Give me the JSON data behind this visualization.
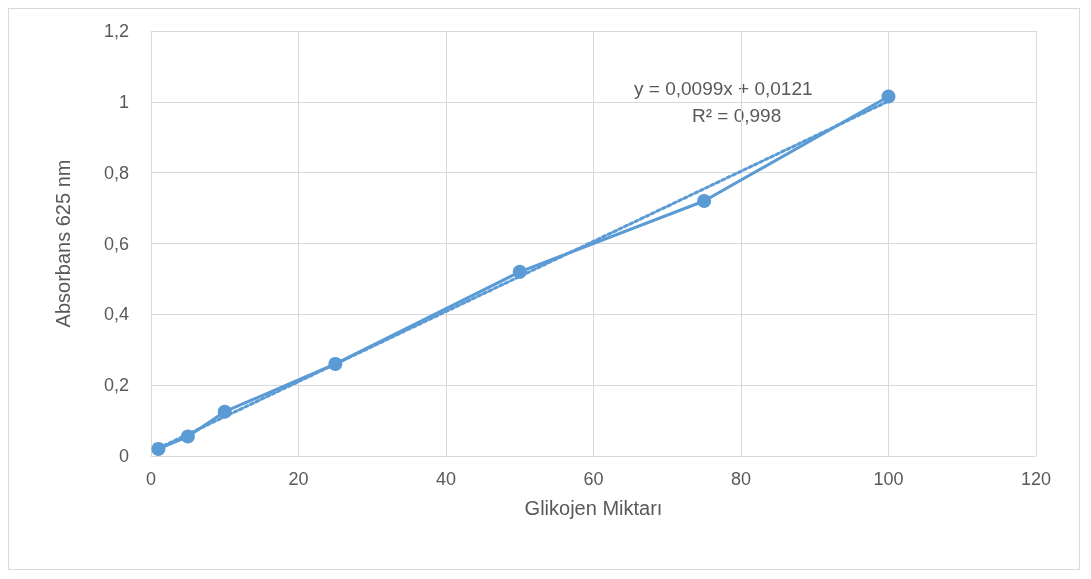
{
  "chart_data": {
    "type": "line",
    "xlabel": "Glikojen Miktarı",
    "ylabel": "Absorbans 625 nm",
    "series": [
      {
        "color": "#5b9bd5",
        "marker": "circle",
        "line_style": "solid",
        "x": [
          1,
          5,
          10,
          25,
          50,
          75,
          100
        ],
        "values": [
          0.02,
          0.055,
          0.125,
          0.26,
          0.52,
          0.72,
          1.015
        ]
      },
      {
        "color": "#5b9bd5",
        "marker": "none",
        "line_style": "dotted",
        "x": [
          1,
          100
        ],
        "values": [
          0.022,
          1.002
        ]
      }
    ],
    "xlim": [
      0,
      120
    ],
    "xticks": [
      0,
      20,
      40,
      60,
      80,
      100,
      120
    ],
    "ylim": [
      0,
      1.2
    ],
    "yticks": [
      0,
      {
        "value": 0.2,
        "label": "0,2"
      },
      {
        "value": 0.4,
        "label": "0,4"
      },
      {
        "value": 0.6,
        "label": "0,6"
      },
      {
        "value": 0.8,
        "label": "0,8"
      },
      1,
      {
        "value": 1.2,
        "label": "1,2"
      }
    ],
    "grid": true,
    "annotations": [
      "y = 0,0099x + 0,0121",
      "R² = 0,998"
    ]
  }
}
